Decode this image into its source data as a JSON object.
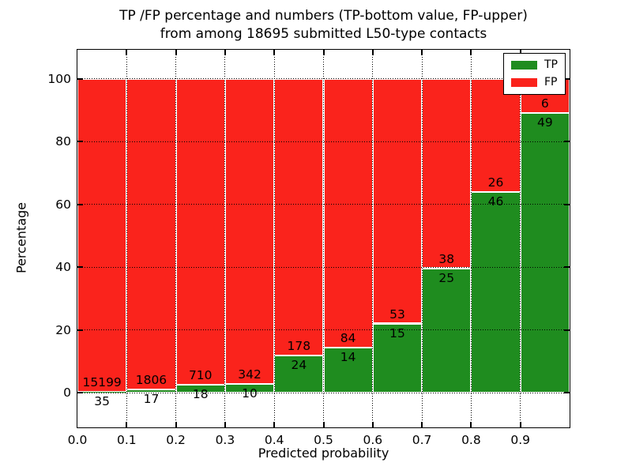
{
  "figure": {
    "title_line1": "TP /FP percentage and numbers (TP-bottom value, FP-upper)",
    "title_line2": "from among 18695 submitted L50-type contacts"
  },
  "axes": {
    "xlabel": "Predicted probability",
    "ylabel": "Percentage",
    "x_tick_labels": [
      "0.0",
      "0.1",
      "0.2",
      "0.3",
      "0.4",
      "0.5",
      "0.6",
      "0.7",
      "0.8",
      "0.9"
    ],
    "y_tick_labels": [
      "0",
      "20",
      "40",
      "60",
      "80",
      "100"
    ],
    "y_tick_values": [
      0,
      20,
      40,
      60,
      80,
      100
    ],
    "xlim": [
      0.0,
      1.0
    ],
    "ylim": [
      -11.05,
      109.3
    ],
    "grid_style": "dotted"
  },
  "legend": {
    "position": "upper right",
    "items": [
      {
        "label": "TP",
        "color": "#1f8c1f"
      },
      {
        "label": "FP",
        "color": "#fa231c"
      }
    ]
  },
  "chart_data": {
    "type": "bar",
    "stacked": true,
    "normalized_to_percent": true,
    "title": "TP /FP percentage and numbers (TP-bottom value, FP-upper) from among 18695 submitted L50-type contacts",
    "xlabel": "Predicted probability",
    "ylabel": "Percentage",
    "total_contacts": 18695,
    "bin_edges": [
      0.0,
      0.1,
      0.2,
      0.3,
      0.4,
      0.5,
      0.6,
      0.7,
      0.8,
      0.9,
      1.0
    ],
    "categories": [
      "0.0-0.1",
      "0.1-0.2",
      "0.2-0.3",
      "0.3-0.4",
      "0.4-0.5",
      "0.5-0.6",
      "0.6-0.7",
      "0.7-0.8",
      "0.8-0.9",
      "0.9-1.0"
    ],
    "series": [
      {
        "name": "TP",
        "color": "#1f8c1f",
        "counts": [
          35,
          17,
          18,
          10,
          24,
          14,
          15,
          25,
          46,
          49
        ]
      },
      {
        "name": "FP",
        "color": "#fa231c",
        "counts": [
          15199,
          1806,
          710,
          342,
          178,
          84,
          53,
          38,
          26,
          6
        ]
      }
    ],
    "tp_percent_of_bin": [
      0.23,
      0.93,
      2.47,
      2.84,
      11.88,
      14.29,
      22.06,
      39.68,
      63.89,
      89.09
    ],
    "bar_top_percent": 100,
    "legend_position": "upper right",
    "grid": true
  }
}
